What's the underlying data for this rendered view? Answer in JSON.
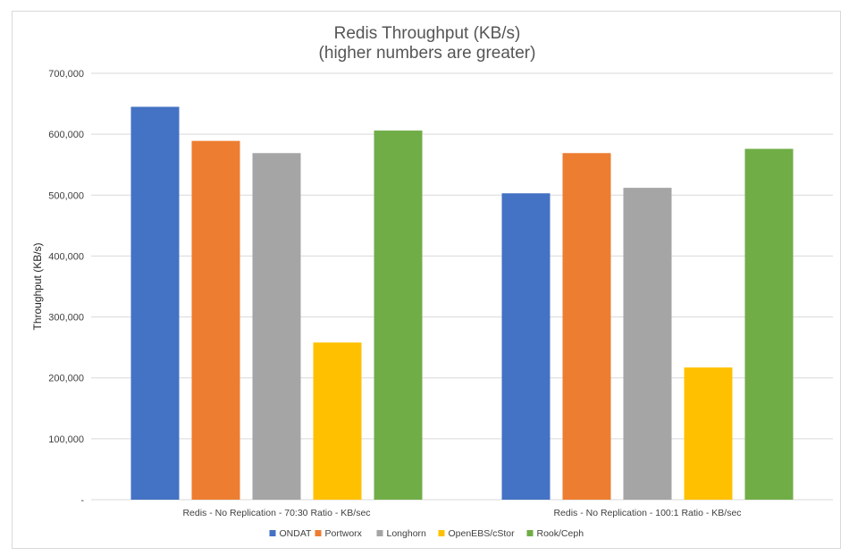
{
  "chart_data": {
    "type": "bar",
    "title": "Redis Throughput (KB/s)",
    "subtitle": "(higher numbers are greater)",
    "xlabel": "",
    "ylabel": "Throughput (KB/s)",
    "ylim": [
      0,
      700000
    ],
    "yticks": [
      0,
      100000,
      200000,
      300000,
      400000,
      500000,
      600000,
      700000
    ],
    "ytick_labels": [
      "-",
      "100,000",
      "200,000",
      "300,000",
      "400,000",
      "500,000",
      "600,000",
      "700,000"
    ],
    "categories": [
      "Redis - No Replication - 70:30 Ratio - KB/sec",
      "Redis - No Replication - 100:1 Ratio - KB/sec"
    ],
    "series": [
      {
        "name": "ONDAT",
        "color": "#4472c4",
        "values": [
          645000,
          503000
        ]
      },
      {
        "name": "Portworx",
        "color": "#ed7d31",
        "values": [
          589000,
          569000
        ]
      },
      {
        "name": "Longhorn",
        "color": "#a5a5a5",
        "values": [
          569000,
          512000
        ]
      },
      {
        "name": "OpenEBS/cStor",
        "color": "#ffc000",
        "values": [
          258000,
          217000
        ]
      },
      {
        "name": "Rook/Ceph",
        "color": "#70ad47",
        "values": [
          606000,
          576000
        ]
      }
    ],
    "grid": true,
    "legend_position": "bottom"
  }
}
